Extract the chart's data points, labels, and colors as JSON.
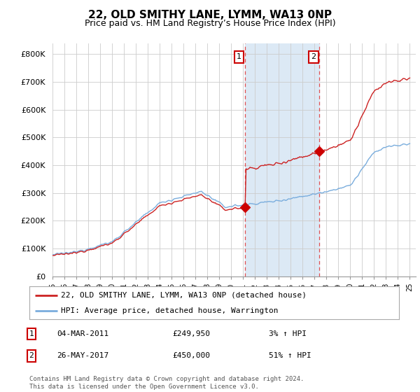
{
  "title": "22, OLD SMITHY LANE, LYMM, WA13 0NP",
  "subtitle": "Price paid vs. HM Land Registry’s House Price Index (HPI)",
  "ylabel_ticks": [
    "£0",
    "£100K",
    "£200K",
    "£300K",
    "£400K",
    "£500K",
    "£600K",
    "£700K",
    "£800K"
  ],
  "ytick_values": [
    0,
    100000,
    200000,
    300000,
    400000,
    500000,
    600000,
    700000,
    800000
  ],
  "ylim": [
    0,
    840000
  ],
  "xlim_start": 1995.0,
  "xlim_end": 2025.5,
  "sale1_x": 2011.17,
  "sale1_y": 249950,
  "sale2_x": 2017.4,
  "sale2_y": 450000,
  "sale1_label": "1",
  "sale2_label": "2",
  "shade_color": "#dce9f5",
  "vline_color": "#e05050",
  "sale_marker_color": "#cc0000",
  "hpi_line_color": "#7aaddd",
  "price_line_color": "#cc2222",
  "legend_line1": "22, OLD SMITHY LANE, LYMM, WA13 0NP (detached house)",
  "legend_line2": "HPI: Average price, detached house, Warrington",
  "table_row1": [
    "1",
    "04-MAR-2011",
    "£249,950",
    "3% ↑ HPI"
  ],
  "table_row2": [
    "2",
    "26-MAY-2017",
    "£450,000",
    "51% ↑ HPI"
  ],
  "footnote": "Contains HM Land Registry data © Crown copyright and database right 2024.\nThis data is licensed under the Open Government Licence v3.0.",
  "bg_color": "#ffffff",
  "grid_color": "#cccccc",
  "title_fontsize": 11,
  "subtitle_fontsize": 9,
  "axis_fontsize": 8
}
